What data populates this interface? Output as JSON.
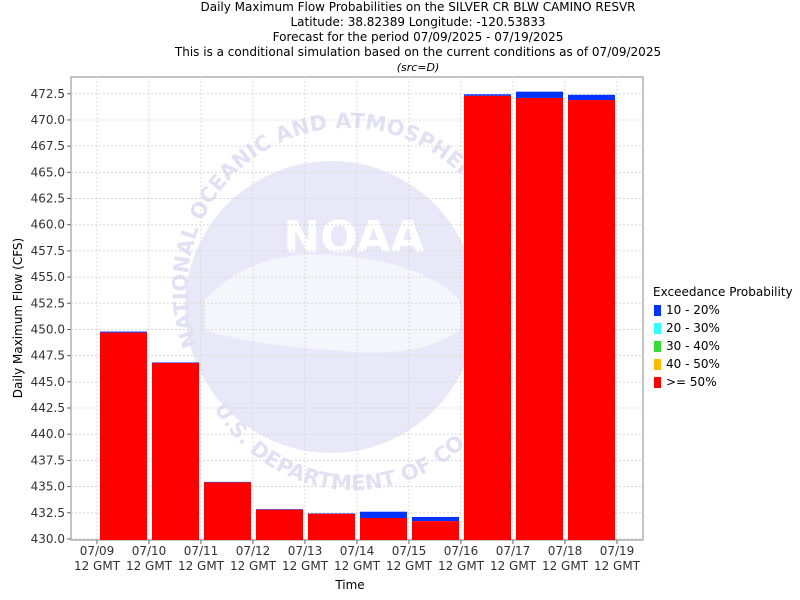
{
  "titles": {
    "line1": "Daily Maximum Flow Probabilities on the SILVER CR BLW CAMINO RESVR",
    "line2": "Latitude: 38.82389 Longitude: -120.53833",
    "line3": "Forecast for the period 07/09/2025 - 07/19/2025",
    "line4": "This is a conditional simulation based on the current conditions as of 07/09/2025",
    "line5": "(src=D)"
  },
  "watermark": {
    "center_text": "NOAA",
    "ring_top": "NATIONAL OCEANIC AND ATMOSPHERIC",
    "ring_bottom": "U.S. DEPARTMENT OF COMMERCE"
  },
  "legend": {
    "title": "Exceedance Probability",
    "items": [
      {
        "label": "10 - 20%",
        "color": "#0033ff"
      },
      {
        "label": "20 - 30%",
        "color": "#33ffff"
      },
      {
        "label": "30 - 40%",
        "color": "#33dd33"
      },
      {
        "label": "40 - 50%",
        "color": "#ffbb00"
      },
      {
        "label": ">= 50%",
        "color": "#ff0000"
      }
    ]
  },
  "chart_data": {
    "type": "bar",
    "stacked": true,
    "title": "Daily Maximum Flow Probabilities on the SILVER CR BLW CAMINO RESVR",
    "xlabel": "Time",
    "ylabel": "Daily Maximum Flow (CFS)",
    "ylim": [
      429.9,
      474.1
    ],
    "yticks": [
      "430.0",
      "432.5",
      "435.0",
      "437.5",
      "440.0",
      "442.5",
      "445.0",
      "447.5",
      "450.0",
      "452.5",
      "455.0",
      "457.5",
      "460.0",
      "462.5",
      "465.0",
      "467.5",
      "470.0",
      "472.5"
    ],
    "xtick_dates": [
      "07/09",
      "07/10",
      "07/11",
      "07/12",
      "07/13",
      "07/14",
      "07/15",
      "07/16",
      "07/17",
      "07/18",
      "07/19"
    ],
    "xtick_time": "12 GMT",
    "grid": true,
    "legend_position": "right",
    "bars": [
      {
        "period": "07/09-07/10",
        "ge50": 449.7,
        "p10_20": 449.8
      },
      {
        "period": "07/10-07/11",
        "ge50": 446.8,
        "p10_20": 446.85
      },
      {
        "period": "07/11-07/12",
        "ge50": 435.4,
        "p10_20": 435.45
      },
      {
        "period": "07/12-07/13",
        "ge50": 432.8,
        "p10_20": 432.85
      },
      {
        "period": "07/13-07/14",
        "ge50": 432.4,
        "p10_20": 432.45
      },
      {
        "period": "07/14-07/15",
        "ge50": 432.0,
        "p10_20": 432.6
      },
      {
        "period": "07/15-07/16",
        "ge50": 431.7,
        "p10_20": 432.1
      },
      {
        "period": "07/16-07/17",
        "ge50": 472.3,
        "p10_20": 472.45
      },
      {
        "period": "07/17-07/18",
        "ge50": 472.1,
        "p10_20": 472.7
      },
      {
        "period": "07/18-07/19",
        "ge50": 471.9,
        "p10_20": 472.4
      }
    ],
    "colors": {
      "ge50": "#ff0000",
      "p10_20": "#0033ff"
    }
  }
}
